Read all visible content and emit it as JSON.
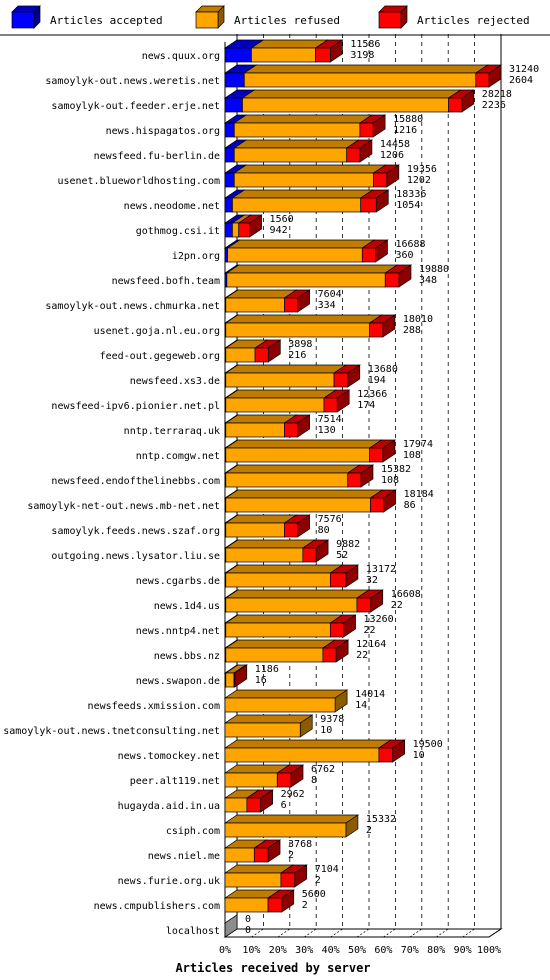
{
  "chart_data": {
    "type": "bar",
    "orientation": "horizontal",
    "stacked": true,
    "xlabel": "Articles received by server",
    "x_ticks": [
      "0%",
      "10%",
      "20%",
      "30%",
      "40%",
      "50%",
      "60%",
      "70%",
      "80%",
      "90%",
      "100%"
    ],
    "legend_position": "top",
    "colors": {
      "accepted": "#0000ff",
      "refused": "#ffa500",
      "rejected": "#ff0000"
    },
    "series": [
      {
        "name": "Articles accepted"
      },
      {
        "name": "Articles refused"
      },
      {
        "name": "Articles rejected"
      }
    ],
    "rows": [
      {
        "server": "news.quux.org",
        "accepted": 11586,
        "refused": 3198
      },
      {
        "server": "samoylyk-out.news.weretis.net",
        "accepted": 31240,
        "refused": 2604
      },
      {
        "server": "samoylyk-out.feeder.erje.net",
        "accepted": 28218,
        "refused": 2236
      },
      {
        "server": "news.hispagatos.org",
        "accepted": 15880,
        "refused": 1216
      },
      {
        "server": "newsfeed.fu-berlin.de",
        "accepted": 14458,
        "refused": 1206
      },
      {
        "server": "usenet.blueworldhosting.com",
        "accepted": 19356,
        "refused": 1202
      },
      {
        "server": "news.neodome.net",
        "accepted": 18336,
        "refused": 1054
      },
      {
        "server": "gothmog.csi.it",
        "accepted": 1560,
        "refused": 942
      },
      {
        "server": "i2pn.org",
        "accepted": 16688,
        "refused": 360
      },
      {
        "server": "newsfeed.bofh.team",
        "accepted": 19880,
        "refused": 348
      },
      {
        "server": "samoylyk-out.news.chmurka.net",
        "accepted": 7604,
        "refused": 334
      },
      {
        "server": "usenet.goja.nl.eu.org",
        "accepted": 18010,
        "refused": 288
      },
      {
        "server": "feed-out.gegeweb.org",
        "accepted": 3898,
        "refused": 216
      },
      {
        "server": "newsfeed.xs3.de",
        "accepted": 13680,
        "refused": 194
      },
      {
        "server": "newsfeed-ipv6.pionier.net.pl",
        "accepted": 12366,
        "refused": 174
      },
      {
        "server": "nntp.terraraq.uk",
        "accepted": 7514,
        "refused": 130
      },
      {
        "server": "nntp.comgw.net",
        "accepted": 17974,
        "refused": 108
      },
      {
        "server": "newsfeed.endofthelinebbs.com",
        "accepted": 15382,
        "refused": 108
      },
      {
        "server": "samoylyk-net-out.news.mb-net.net",
        "accepted": 18184,
        "refused": 86
      },
      {
        "server": "samoylyk.feeds.news.szaf.org",
        "accepted": 7576,
        "refused": 80
      },
      {
        "server": "outgoing.news.lysator.liu.se",
        "accepted": 9882,
        "refused": 52
      },
      {
        "server": "news.cgarbs.de",
        "accepted": 13172,
        "refused": 32
      },
      {
        "server": "news.1d4.us",
        "accepted": 16608,
        "refused": 22
      },
      {
        "server": "news.nntp4.net",
        "accepted": 13260,
        "refused": 22
      },
      {
        "server": "news.bbs.nz",
        "accepted": 12164,
        "refused": 22
      },
      {
        "server": "news.swapon.de",
        "accepted": 1186,
        "refused": 16
      },
      {
        "server": "newsfeeds.xmission.com",
        "accepted": 14014,
        "refused": 14
      },
      {
        "server": "samoylyk-out.news.tnetconsulting.net",
        "accepted": 9378,
        "refused": 10
      },
      {
        "server": "news.tomockey.net",
        "accepted": 19500,
        "refused": 10
      },
      {
        "server": "peer.alt119.net",
        "accepted": 6762,
        "refused": 8
      },
      {
        "server": "hugayda.aid.in.ua",
        "accepted": 2962,
        "refused": 6
      },
      {
        "server": "csiph.com",
        "accepted": 15332,
        "refused": 2
      },
      {
        "server": "news.niel.me",
        "accepted": 3768,
        "refused": 2
      },
      {
        "server": "news.furie.org.uk",
        "accepted": 7104,
        "refused": 2
      },
      {
        "server": "news.cmpublishers.com",
        "accepted": 5600,
        "refused": 2
      },
      {
        "server": "localhost",
        "accepted": 0,
        "refused": 0
      }
    ],
    "visual_fractions": [
      {
        "accepted": 0.1,
        "refused": 0.243,
        "rejected": 0.056
      },
      {
        "accepted": 0.073,
        "refused": 0.877,
        "rejected": 0.05
      },
      {
        "accepted": 0.066,
        "refused": 0.781,
        "rejected": 0.05
      },
      {
        "accepted": 0.035,
        "refused": 0.476,
        "rejected": 0.05
      },
      {
        "accepted": 0.035,
        "refused": 0.426,
        "rejected": 0.05
      },
      {
        "accepted": 0.035,
        "refused": 0.528,
        "rejected": 0.05
      },
      {
        "accepted": 0.028,
        "refused": 0.486,
        "rejected": 0.059
      },
      {
        "accepted": 0.028,
        "refused": 0.024,
        "rejected": 0.041
      },
      {
        "accepted": 0.01,
        "refused": 0.51,
        "rejected": 0.05
      },
      {
        "accepted": 0.007,
        "refused": 0.6,
        "rejected": 0.052
      },
      {
        "accepted": 0.003,
        "refused": 0.222,
        "rejected": 0.05
      },
      {
        "accepted": 0.003,
        "refused": 0.545,
        "rejected": 0.05
      },
      {
        "accepted": 0.003,
        "refused": 0.111,
        "rejected": 0.05
      },
      {
        "accepted": 0.003,
        "refused": 0.41,
        "rejected": 0.052
      },
      {
        "accepted": 0.003,
        "refused": 0.372,
        "rejected": 0.05
      },
      {
        "accepted": 0.003,
        "refused": 0.222,
        "rejected": 0.05
      },
      {
        "accepted": 0.003,
        "refused": 0.545,
        "rejected": 0.05
      },
      {
        "accepted": 0.003,
        "refused": 0.462,
        "rejected": 0.05
      },
      {
        "accepted": 0.003,
        "refused": 0.548,
        "rejected": 0.05
      },
      {
        "accepted": 0.003,
        "refused": 0.222,
        "rejected": 0.05
      },
      {
        "accepted": 0.003,
        "refused": 0.292,
        "rejected": 0.05
      },
      {
        "accepted": 0.003,
        "refused": 0.396,
        "rejected": 0.059
      },
      {
        "accepted": 0.003,
        "refused": 0.497,
        "rejected": 0.052
      },
      {
        "accepted": 0.003,
        "refused": 0.396,
        "rejected": 0.05
      },
      {
        "accepted": 0.003,
        "refused": 0.368,
        "rejected": 0.05
      },
      {
        "accepted": 0.003,
        "refused": 0.031,
        "rejected": 0.003
      },
      {
        "accepted": 0.0,
        "refused": 0.417,
        "rejected": 0.0
      },
      {
        "accepted": 0.0,
        "refused": 0.285,
        "rejected": 0.0
      },
      {
        "accepted": 0.0,
        "refused": 0.583,
        "rejected": 0.052
      },
      {
        "accepted": 0.0,
        "refused": 0.198,
        "rejected": 0.052
      },
      {
        "accepted": 0.0,
        "refused": 0.083,
        "rejected": 0.052
      },
      {
        "accepted": 0.0,
        "refused": 0.458,
        "rejected": 0.0
      },
      {
        "accepted": 0.0,
        "refused": 0.111,
        "rejected": 0.052
      },
      {
        "accepted": 0.0,
        "refused": 0.212,
        "rejected": 0.052
      },
      {
        "accepted": 0.0,
        "refused": 0.163,
        "rejected": 0.052
      },
      {
        "accepted": 0.0,
        "refused": 0.0,
        "rejected": 0.0
      }
    ]
  }
}
